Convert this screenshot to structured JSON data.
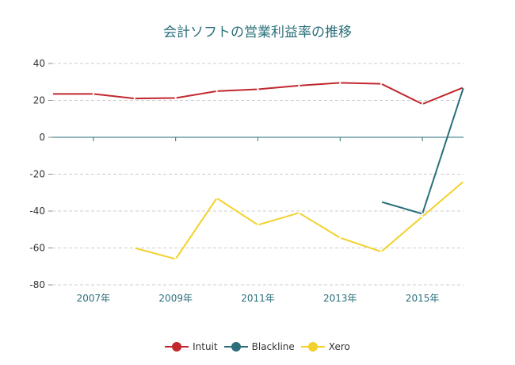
{
  "chart_data": {
    "type": "line",
    "title": "会計ソフトの営業利益率の推移",
    "xlabel": "",
    "ylabel": "",
    "ylim": [
      -80,
      40
    ],
    "yticks": [
      40,
      20,
      0,
      -20,
      -40,
      -60,
      -80
    ],
    "x": [
      2006,
      2007,
      2008,
      2009,
      2010,
      2011,
      2012,
      2013,
      2014,
      2015,
      2016
    ],
    "xtick_labels": [
      {
        "year": 2007,
        "label": "2007年"
      },
      {
        "year": 2009,
        "label": "2009年"
      },
      {
        "year": 2011,
        "label": "2011年"
      },
      {
        "year": 2013,
        "label": "2013年"
      },
      {
        "year": 2015,
        "label": "2015年"
      }
    ],
    "grid": "horizontal dashed",
    "legend_position": "bottom-center",
    "series": [
      {
        "name": "Intuit",
        "color": "#c1272d",
        "values": [
          23.5,
          23.5,
          21,
          21.3,
          25,
          26,
          28,
          29.5,
          29,
          18,
          27
        ]
      },
      {
        "name": "Blackline",
        "color": "#2a6f7a",
        "values": [
          null,
          null,
          null,
          null,
          null,
          null,
          null,
          null,
          -35,
          -41.5,
          27
        ]
      },
      {
        "name": "Xero",
        "color": "#f2d12b",
        "values": [
          null,
          null,
          -60,
          -66,
          -33,
          -47.5,
          -41,
          -54.5,
          -62,
          -43,
          -24
        ]
      }
    ]
  }
}
